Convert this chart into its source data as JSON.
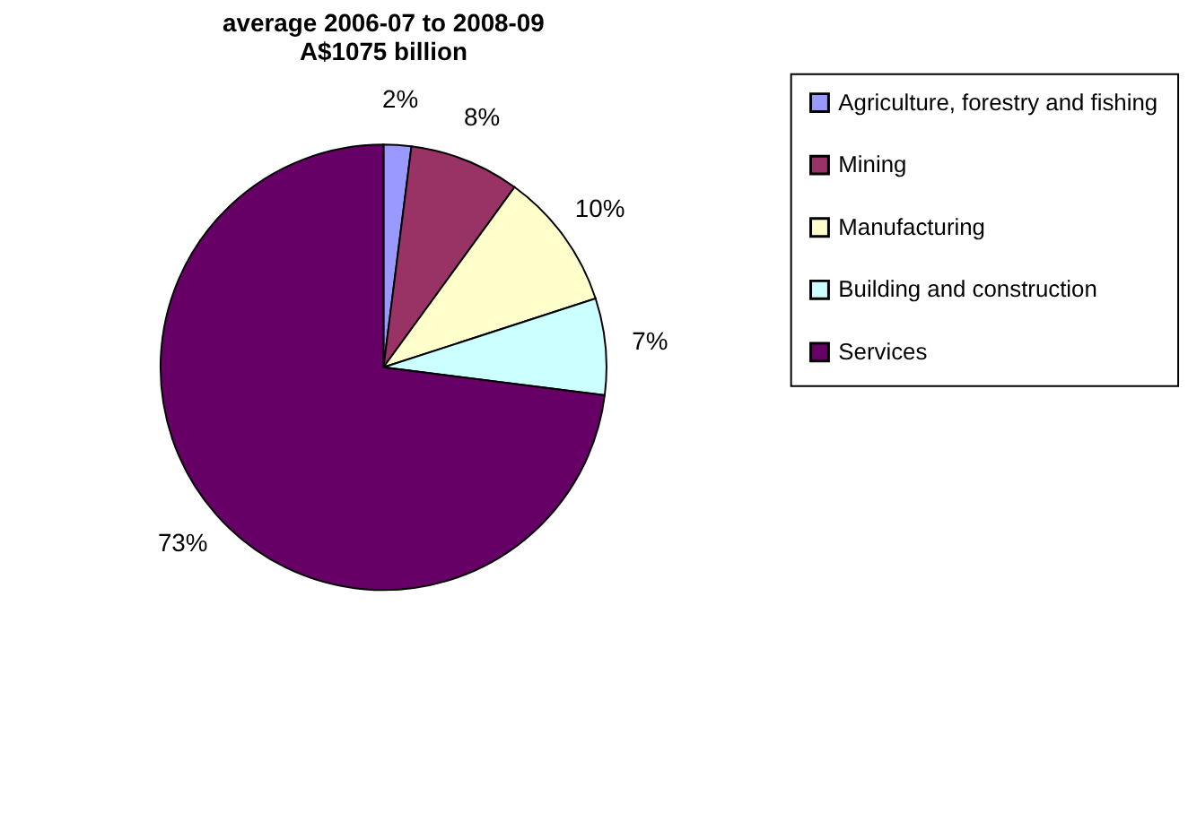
{
  "chart_data": {
    "type": "pie",
    "title": [
      "average 2006-07 to 2008-09",
      "A$1075 billion"
    ],
    "categories": [
      "Agriculture, forestry and fishing",
      "Mining",
      "Manufacturing",
      "Building and construction",
      "Services"
    ],
    "values": [
      2,
      8,
      10,
      7,
      73
    ],
    "value_labels": [
      "2%",
      "8%",
      "10%",
      "7%",
      "73%"
    ],
    "colors": [
      "#9999ff",
      "#993366",
      "#ffffcc",
      "#ccffff",
      "#660066"
    ],
    "legend": "right"
  }
}
